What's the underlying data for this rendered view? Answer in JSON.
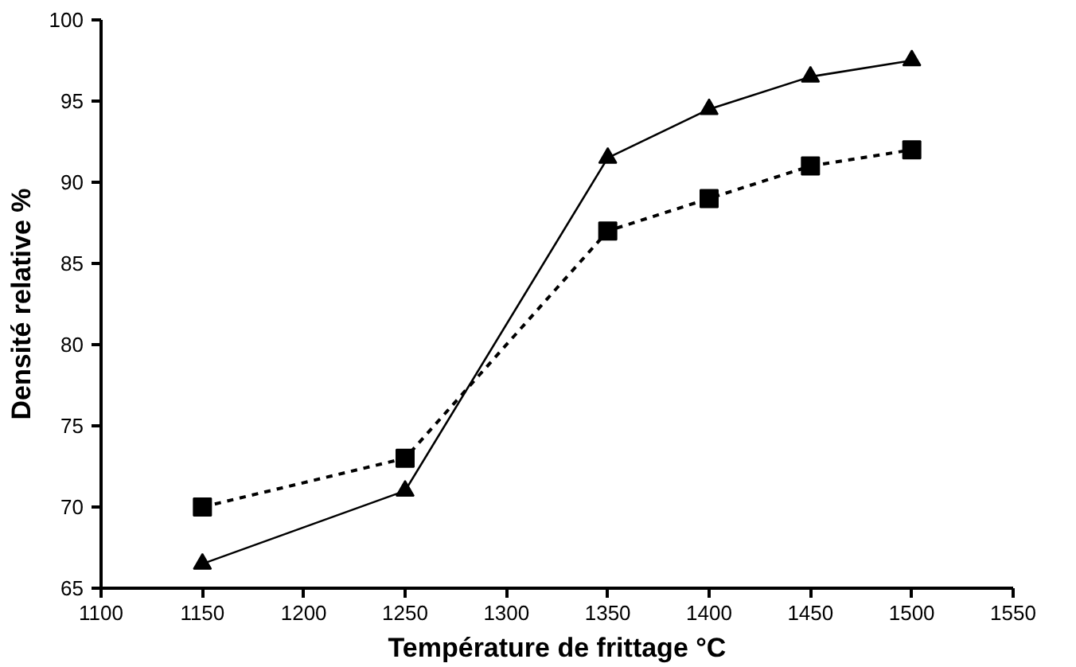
{
  "chart_data": {
    "type": "line",
    "xlabel": "Température de frittage °C",
    "ylabel": "Densité relative %",
    "x": [
      1150,
      1250,
      1350,
      1400,
      1450,
      1500
    ],
    "series": [
      {
        "color": "#000000",
        "values": [
          66.5,
          71,
          91.5,
          94.5,
          96.5,
          97.5
        ],
        "marker": "triangle",
        "line_style": "solid"
      },
      {
        "color": "#000000",
        "values": [
          70,
          73,
          87,
          89,
          91,
          92
        ],
        "marker": "square",
        "line_style": "dashed"
      }
    ],
    "xlim": [
      1100,
      1550
    ],
    "xticks": [
      1100,
      1150,
      1200,
      1250,
      1300,
      1350,
      1400,
      1450,
      1500,
      1550
    ],
    "ylim": [
      65,
      100
    ],
    "yticks": [
      65,
      70,
      75,
      80,
      85,
      90,
      95,
      100
    ],
    "grid": false
  }
}
